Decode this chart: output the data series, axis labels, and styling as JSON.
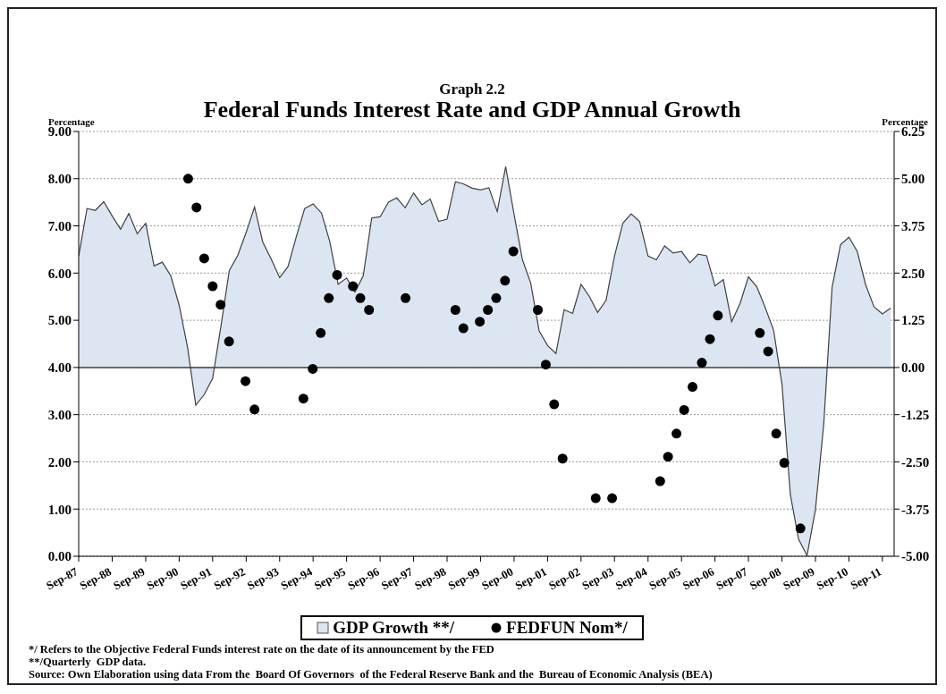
{
  "chart_data": {
    "type": "area",
    "title": "Graph 2.2",
    "subtitle": "Federal Funds Interest Rate and GDP Annual Growth",
    "ylabel": "Percentage",
    "y2label": "Percentage",
    "xlim": [
      "1987-09",
      "2012-01-07"
    ],
    "xticks": [
      {
        "value": "1987-09",
        "label": "Sep-87"
      },
      {
        "value": "1988-09",
        "label": "Sep-88"
      },
      {
        "value": "1989-09",
        "label": "Sep-89"
      },
      {
        "value": "1990-09",
        "label": "Sep-90"
      },
      {
        "value": "1991-09",
        "label": "Sep-91"
      },
      {
        "value": "1992-09",
        "label": "Sep-92"
      },
      {
        "value": "1993-09",
        "label": "Sep-93"
      },
      {
        "value": "1994-09",
        "label": "Sep-94"
      },
      {
        "value": "1995-09",
        "label": "Sep-95"
      },
      {
        "value": "1996-09",
        "label": "Sep-96"
      },
      {
        "value": "1997-09",
        "label": "Sep-97"
      },
      {
        "value": "1998-09",
        "label": "Sep-98"
      },
      {
        "value": "1999-09",
        "label": "Sep-99"
      },
      {
        "value": "2000-09",
        "label": "Sep-00"
      },
      {
        "value": "2001-09",
        "label": "Sep-01"
      },
      {
        "value": "2002-09",
        "label": "Sep-02"
      },
      {
        "value": "2003-09",
        "label": "Sep-03"
      },
      {
        "value": "2004-09",
        "label": "Sep-04"
      },
      {
        "value": "2005-09",
        "label": "Sep-05"
      },
      {
        "value": "2006-09",
        "label": "Sep-06"
      },
      {
        "value": "2007-09",
        "label": "Sep-07"
      },
      {
        "value": "2008-09",
        "label": "Sep-08"
      },
      {
        "value": "2009-09",
        "label": "Sep-09"
      },
      {
        "value": "2010-09",
        "label": "Sep-10"
      },
      {
        "value": "2011-09",
        "label": "Sep-11"
      }
    ],
    "ylim": [
      0,
      9
    ],
    "yticks": [
      {
        "value": 0,
        "label": "0.00"
      },
      {
        "value": 1,
        "label": "1.00"
      },
      {
        "value": 2,
        "label": "2.00"
      },
      {
        "value": 3,
        "label": "3.00"
      },
      {
        "value": 4,
        "label": "4.00"
      },
      {
        "value": 5,
        "label": "5.00"
      },
      {
        "value": 6,
        "label": "6.00"
      },
      {
        "value": 7,
        "label": "7.00"
      },
      {
        "value": 8,
        "label": "8.00"
      },
      {
        "value": 9,
        "label": "9.00"
      }
    ],
    "y2lim": [
      -5,
      6.25
    ],
    "y2ticks": [
      {
        "value": -5,
        "label": "-5.00"
      },
      {
        "value": -3.75,
        "label": "-3.75"
      },
      {
        "value": -2.5,
        "label": "-2.50"
      },
      {
        "value": -1.25,
        "label": "-1.25"
      },
      {
        "value": 0,
        "label": "0.00"
      },
      {
        "value": 1.25,
        "label": "1.25"
      },
      {
        "value": 2.5,
        "label": "2.50"
      },
      {
        "value": 3.75,
        "label": "3.75"
      },
      {
        "value": 5,
        "label": "5.00"
      },
      {
        "value": 6.25,
        "label": "6.25"
      }
    ],
    "grid": "y",
    "legend": "bottom",
    "ref_lines": [
      {
        "axis": "y2",
        "value": 0,
        "color": "#404040"
      }
    ],
    "series": [
      {
        "name": "GDP Growth **/",
        "axis": "y2",
        "color": "#dce6f2",
        "x": [
          "1987-09",
          "1987-12",
          "1988-03",
          "1988-06",
          "1988-09",
          "1988-12",
          "1989-03",
          "1989-06",
          "1989-09",
          "1989-12",
          "1990-03",
          "1990-06",
          "1990-09",
          "1990-12",
          "1991-03",
          "1991-06",
          "1991-09",
          "1991-12",
          "1992-03",
          "1992-06",
          "1992-09",
          "1992-12",
          "1993-03",
          "1993-06",
          "1993-09",
          "1993-12",
          "1994-03",
          "1994-06",
          "1994-09",
          "1994-12",
          "1995-03",
          "1995-06",
          "1995-09",
          "1995-12",
          "1996-03",
          "1996-06",
          "1996-09",
          "1996-12",
          "1997-03",
          "1997-06",
          "1997-09",
          "1997-12",
          "1998-03",
          "1998-06",
          "1998-09",
          "1998-12",
          "1999-03",
          "1999-06",
          "1999-09",
          "1999-12",
          "2000-03",
          "2000-06",
          "2000-09",
          "2000-12",
          "2001-03",
          "2001-06",
          "2001-09",
          "2001-12",
          "2002-03",
          "2002-06",
          "2002-09",
          "2002-12",
          "2003-03",
          "2003-06",
          "2003-09",
          "2003-12",
          "2004-03",
          "2004-06",
          "2004-09",
          "2004-12",
          "2005-03",
          "2005-06",
          "2005-09",
          "2005-12",
          "2006-03",
          "2006-06",
          "2006-09",
          "2006-12",
          "2007-03",
          "2007-06",
          "2007-09",
          "2007-12",
          "2008-03",
          "2008-06",
          "2008-09",
          "2008-12",
          "2009-03",
          "2009-06",
          "2009-09",
          "2009-12",
          "2010-03",
          "2010-06",
          "2010-09",
          "2010-12",
          "2011-03",
          "2011-06",
          "2011-09",
          "2011-12"
        ],
        "values": [
          2.95,
          4.21,
          4.16,
          4.39,
          4.01,
          3.66,
          4.08,
          3.54,
          3.82,
          2.69,
          2.79,
          2.43,
          1.65,
          0.54,
          -1.0,
          -0.72,
          -0.29,
          1.1,
          2.57,
          2.97,
          3.58,
          4.25,
          3.32,
          2.87,
          2.38,
          2.67,
          3.46,
          4.21,
          4.33,
          4.09,
          3.34,
          2.2,
          2.37,
          2.0,
          2.43,
          3.96,
          3.99,
          4.38,
          4.49,
          4.23,
          4.62,
          4.31,
          4.46,
          3.87,
          3.93,
          4.92,
          4.86,
          4.75,
          4.7,
          4.76,
          4.13,
          5.32,
          4.05,
          2.85,
          2.24,
          0.97,
          0.58,
          0.37,
          1.53,
          1.43,
          2.2,
          1.88,
          1.46,
          1.78,
          2.95,
          3.82,
          4.07,
          3.86,
          2.95,
          2.85,
          3.22,
          3.03,
          3.07,
          2.77,
          3.0,
          2.96,
          2.16,
          2.33,
          1.21,
          1.69,
          2.4,
          2.14,
          1.59,
          0.99,
          -0.45,
          -3.37,
          -4.55,
          -4.98,
          -3.76,
          -1.47,
          2.12,
          3.25,
          3.45,
          3.07,
          2.2,
          1.61,
          1.42,
          1.57
        ]
      },
      {
        "name": "FEDFUN Nom*/",
        "type": "scatter",
        "marker": "circle",
        "color": "#000000",
        "x": [
          "1990-12-08",
          "1991-03-09",
          "1991-06-01",
          "1991-09-01",
          "1991-11-27",
          "1992-02-27",
          "1992-08-24",
          "1992-12-01",
          "1994-05-18",
          "1994-08-28",
          "1994-11-23",
          "1995-02-19",
          "1995-05-21",
          "1995-11-09",
          "1996-01-29",
          "1996-05-03",
          "1997-06-05",
          "1998-12-01",
          "1999-02-26",
          "1999-08-24",
          "1999-11-20",
          "2000-02-19",
          "2000-05-25",
          "2000-08-24",
          "2001-05-18",
          "2001-08-13",
          "2001-11-12",
          "2002-02-12",
          "2003-02-08",
          "2003-08-06",
          "2005-01-11",
          "2005-04-07",
          "2005-07-08",
          "2005-09-30",
          "2005-12-30",
          "2006-04-11",
          "2006-07-08",
          "2006-10-03",
          "2008-01-03",
          "2008-04-03",
          "2008-06-30",
          "2008-09-26",
          "2009-03-21"
        ],
        "values": [
          8.0,
          7.39,
          6.31,
          5.72,
          5.33,
          4.55,
          3.71,
          3.11,
          3.34,
          3.97,
          4.73,
          5.47,
          5.96,
          5.72,
          5.47,
          5.22,
          5.47,
          5.22,
          4.83,
          4.97,
          5.22,
          5.47,
          5.84,
          6.46,
          5.22,
          4.06,
          3.22,
          2.07,
          1.23,
          1.23,
          1.59,
          2.11,
          2.6,
          3.1,
          3.59,
          4.1,
          4.6,
          5.1,
          4.73,
          4.34,
          2.6,
          1.98,
          0.59
        ]
      }
    ],
    "annotations": [
      "*/ Refers to the Objective Federal Funds interest rate on the date of its announcement by the FED",
      "**/Quarterly  GDP data.",
      "Source: Own Elaboration using data From the  Board Of Governors  of the Federal Reserve Bank and the  Bureau of Economic Analysis (BEA)"
    ]
  }
}
